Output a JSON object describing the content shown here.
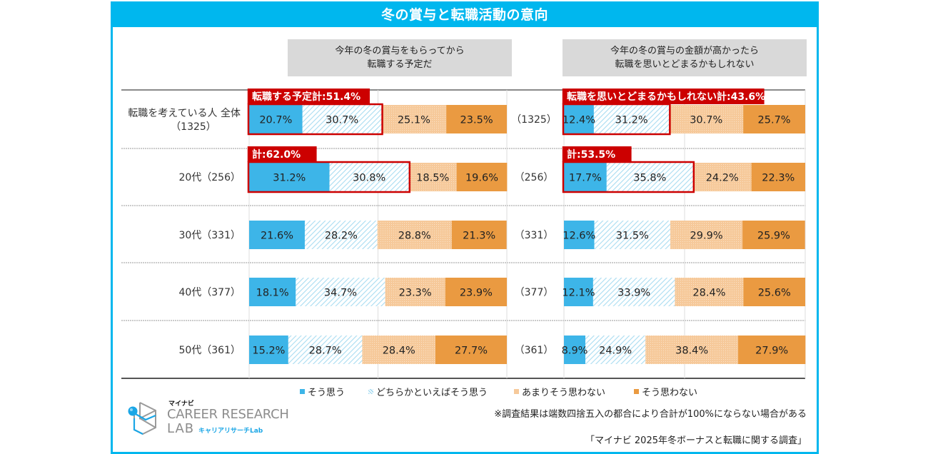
{
  "title": "冬の賞与と転職活動の意向",
  "column_headers": [
    "今年の冬の賞与をもらってから\n転職する予定だ",
    "今年の冬の賞与の金額が高かったら\n転職を思いとどまるかもしれない"
  ],
  "colors": {
    "frame": "#00b7ee",
    "strongly_agree": "#3db5e8",
    "somewhat_agree_hatch": "#a9dcf1",
    "somewhat_disagree": "#f6c99a",
    "disagree": "#ea9a41",
    "callout": "#cc0000"
  },
  "legend": [
    {
      "label": "そう思う",
      "key": "strongly_agree"
    },
    {
      "label": "どちらかといえばそう思う",
      "key": "somewhat_agree"
    },
    {
      "label": "あまりそう思わない",
      "key": "somewhat_disagree"
    },
    {
      "label": "そう思わない",
      "key": "disagree"
    }
  ],
  "notes": {
    "rounding": "※調査結果は端数四捨五入の都合により合計が100%にならない場合がある",
    "source": "「マイナビ 2025年冬ボーナスと転職に関する調査」"
  },
  "logo": {
    "brand": "マイナビ",
    "line1": "CAREER RESEARCH",
    "line2": "LAB",
    "sub": "キャリアリサーチLab"
  },
  "chart_data": [
    {
      "type": "bar",
      "orientation": "horizontal-stacked-100",
      "title": "今年の冬の賞与をもらってから転職する予定だ",
      "categories": [
        "転職を考えている人 全体\n（1325）",
        "20代（256）",
        "30代（331）",
        "40代（377）",
        "50代（361）"
      ],
      "series": [
        {
          "name": "そう思う",
          "values": [
            20.7,
            31.2,
            21.6,
            18.1,
            15.2
          ]
        },
        {
          "name": "どちらかといえばそう思う",
          "values": [
            30.7,
            30.8,
            28.2,
            34.7,
            28.7
          ]
        },
        {
          "name": "あまりそう思わない",
          "values": [
            25.1,
            18.5,
            28.8,
            23.3,
            28.4
          ]
        },
        {
          "name": "そう思わない",
          "values": [
            23.5,
            19.6,
            21.3,
            23.9,
            27.7
          ]
        }
      ],
      "callouts": [
        {
          "row": 0,
          "text": "転職する予定計:51.4%"
        },
        {
          "row": 1,
          "text": "計:62.0%"
        }
      ],
      "xlim": [
        0,
        100
      ],
      "gridlines": [
        50
      ]
    },
    {
      "type": "bar",
      "orientation": "horizontal-stacked-100",
      "title": "今年の冬の賞与の金額が高かったら転職を思いとどまるかもしれない",
      "categories": [
        "（1325）",
        "（256）",
        "（331）",
        "（377）",
        "（361）"
      ],
      "series": [
        {
          "name": "そう思う",
          "values": [
            12.4,
            17.7,
            12.6,
            12.1,
            8.9
          ]
        },
        {
          "name": "どちらかといえばそう思う",
          "values": [
            31.2,
            35.8,
            31.5,
            33.9,
            24.9
          ]
        },
        {
          "name": "あまりそう思わない",
          "values": [
            30.7,
            24.2,
            29.9,
            28.4,
            38.4
          ]
        },
        {
          "name": "そう思わない",
          "values": [
            25.7,
            22.3,
            25.9,
            25.6,
            27.9
          ]
        }
      ],
      "callouts": [
        {
          "row": 0,
          "text": "転職を思いとどまるかもしれない計:43.6%"
        },
        {
          "row": 1,
          "text": "計:53.5%"
        }
      ],
      "xlim": [
        0,
        100
      ],
      "gridlines": [
        50
      ]
    }
  ]
}
